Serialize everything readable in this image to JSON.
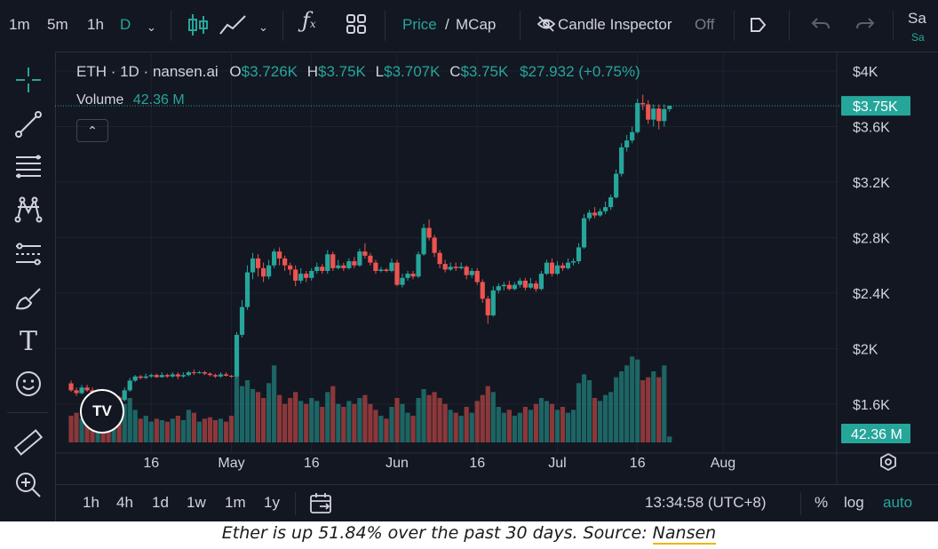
{
  "colors": {
    "bg": "#131722",
    "up": "#26a69a",
    "down": "#ef5350",
    "text": "#d1d4dc",
    "grid": "#1e222d",
    "price_tag": "#26a69a"
  },
  "toolbar": {
    "intervals": [
      "1m",
      "5m",
      "1h",
      "D"
    ],
    "active_interval": "D",
    "price_label": "Price",
    "mcap_label": "MCap",
    "slash": "/",
    "candle_inspector_label": "Candle Inspector",
    "candle_inspector_state": "Off",
    "save_label": "Sa",
    "save_sub_label": "Sa"
  },
  "legend": {
    "symbol": "ETH · 1D · nansen.ai",
    "o_label": "O",
    "o_value": "$3.726K",
    "h_label": "H",
    "h_value": "$3.75K",
    "l_label": "L",
    "l_value": "$3.707K",
    "c_label": "C",
    "c_value": "$3.75K",
    "change": "$27.932 (+0.75%)",
    "volume_label": "Volume",
    "volume_value": "42.36 M"
  },
  "price_tag": "$3.75K",
  "volume_tag": "42.36 M",
  "bottombar": {
    "ranges": [
      "1h",
      "4h",
      "1d",
      "1w",
      "1m",
      "1y"
    ],
    "time": "13:34:58 (UTC+8)",
    "percent_label": "%",
    "log_label": "log",
    "auto_label": "auto"
  },
  "caption": {
    "text": "Ether is up 51.84% over the past 30 days. Source: ",
    "link": "Nansen"
  },
  "icons": [
    "crosshair-icon",
    "trendline-icon",
    "fib-icon",
    "pattern-icon",
    "projection-icon",
    "brush-icon",
    "text-icon",
    "emoji-icon",
    "ruler-icon",
    "zoom-icon",
    "indicators-icon",
    "layouts-icon",
    "eye-off-icon",
    "tag-icon",
    "undo-icon",
    "redo-icon",
    "calendar-icon",
    "settings-icon"
  ],
  "chart_data": {
    "type": "candlestick",
    "title": "ETH · 1D · nansen.ai",
    "y_ticks": [
      "$4K",
      "$3.6K",
      "$3.2K",
      "$2.8K",
      "$2.4K",
      "$2K",
      "$1.6K"
    ],
    "y_tick_values": [
      4000,
      3600,
      3200,
      2800,
      2400,
      2000,
      1600
    ],
    "x_ticks": [
      "16",
      "May",
      "16",
      "Jun",
      "16",
      "Jul",
      "16",
      "Aug"
    ],
    "x_tick_days": [
      15,
      30,
      45,
      61,
      76,
      91,
      106,
      122
    ],
    "ylim": [
      1450,
      4100
    ],
    "xlim_days": [
      -1,
      132
    ],
    "current_price": 3750,
    "candles": [
      {
        "o": 1750,
        "c": 1700,
        "h": 1770,
        "l": 1690,
        "v": 18
      },
      {
        "o": 1700,
        "c": 1680,
        "h": 1720,
        "l": 1660,
        "v": 20
      },
      {
        "o": 1680,
        "c": 1720,
        "h": 1740,
        "l": 1670,
        "v": 16
      },
      {
        "o": 1720,
        "c": 1700,
        "h": 1740,
        "l": 1690,
        "v": 18
      },
      {
        "o": 1700,
        "c": 1680,
        "h": 1720,
        "l": 1670,
        "v": 14
      },
      {
        "o": 1680,
        "c": 1700,
        "h": 1710,
        "l": 1670,
        "v": 16
      },
      {
        "o": 1700,
        "c": 1660,
        "h": 1710,
        "l": 1650,
        "v": 15
      },
      {
        "o": 1660,
        "c": 1640,
        "h": 1680,
        "l": 1620,
        "v": 17
      },
      {
        "o": 1640,
        "c": 1650,
        "h": 1660,
        "l": 1630,
        "v": 14
      },
      {
        "o": 1650,
        "c": 1630,
        "h": 1660,
        "l": 1620,
        "v": 15
      },
      {
        "o": 1630,
        "c": 1700,
        "h": 1720,
        "l": 1620,
        "v": 26
      },
      {
        "o": 1700,
        "c": 1770,
        "h": 1790,
        "l": 1690,
        "v": 30
      },
      {
        "o": 1770,
        "c": 1800,
        "h": 1810,
        "l": 1760,
        "v": 22
      },
      {
        "o": 1800,
        "c": 1790,
        "h": 1810,
        "l": 1780,
        "v": 16
      },
      {
        "o": 1790,
        "c": 1800,
        "h": 1820,
        "l": 1780,
        "v": 18
      },
      {
        "o": 1800,
        "c": 1810,
        "h": 1820,
        "l": 1790,
        "v": 14
      },
      {
        "o": 1810,
        "c": 1795,
        "h": 1820,
        "l": 1790,
        "v": 16
      },
      {
        "o": 1795,
        "c": 1810,
        "h": 1830,
        "l": 1790,
        "v": 15
      },
      {
        "o": 1810,
        "c": 1800,
        "h": 1820,
        "l": 1790,
        "v": 14
      },
      {
        "o": 1800,
        "c": 1815,
        "h": 1830,
        "l": 1790,
        "v": 16
      },
      {
        "o": 1815,
        "c": 1800,
        "h": 1830,
        "l": 1780,
        "v": 18
      },
      {
        "o": 1800,
        "c": 1810,
        "h": 1830,
        "l": 1790,
        "v": 15
      },
      {
        "o": 1810,
        "c": 1830,
        "h": 1840,
        "l": 1800,
        "v": 22
      },
      {
        "o": 1830,
        "c": 1825,
        "h": 1850,
        "l": 1810,
        "v": 20
      },
      {
        "o": 1825,
        "c": 1830,
        "h": 1840,
        "l": 1820,
        "v": 14
      },
      {
        "o": 1830,
        "c": 1820,
        "h": 1840,
        "l": 1810,
        "v": 16
      },
      {
        "o": 1820,
        "c": 1810,
        "h": 1830,
        "l": 1800,
        "v": 17
      },
      {
        "o": 1810,
        "c": 1800,
        "h": 1820,
        "l": 1790,
        "v": 15
      },
      {
        "o": 1800,
        "c": 1815,
        "h": 1830,
        "l": 1790,
        "v": 16
      },
      {
        "o": 1815,
        "c": 1805,
        "h": 1830,
        "l": 1800,
        "v": 14
      },
      {
        "o": 1805,
        "c": 1800,
        "h": 1810,
        "l": 1790,
        "v": 18
      },
      {
        "o": 1800,
        "c": 2100,
        "h": 2120,
        "l": 1790,
        "v": 45
      },
      {
        "o": 2100,
        "c": 2300,
        "h": 2350,
        "l": 2080,
        "v": 38
      },
      {
        "o": 2300,
        "c": 2550,
        "h": 2600,
        "l": 2280,
        "v": 42
      },
      {
        "o": 2550,
        "c": 2650,
        "h": 2690,
        "l": 2500,
        "v": 36
      },
      {
        "o": 2650,
        "c": 2580,
        "h": 2680,
        "l": 2520,
        "v": 34
      },
      {
        "o": 2580,
        "c": 2520,
        "h": 2620,
        "l": 2480,
        "v": 30
      },
      {
        "o": 2520,
        "c": 2600,
        "h": 2640,
        "l": 2500,
        "v": 40
      },
      {
        "o": 2600,
        "c": 2700,
        "h": 2720,
        "l": 2580,
        "v": 52
      },
      {
        "o": 2700,
        "c": 2650,
        "h": 2730,
        "l": 2600,
        "v": 32
      },
      {
        "o": 2650,
        "c": 2600,
        "h": 2670,
        "l": 2560,
        "v": 26
      },
      {
        "o": 2600,
        "c": 2570,
        "h": 2620,
        "l": 2530,
        "v": 30
      },
      {
        "o": 2570,
        "c": 2490,
        "h": 2600,
        "l": 2450,
        "v": 34
      },
      {
        "o": 2490,
        "c": 2540,
        "h": 2580,
        "l": 2470,
        "v": 28
      },
      {
        "o": 2540,
        "c": 2510,
        "h": 2560,
        "l": 2480,
        "v": 26
      },
      {
        "o": 2510,
        "c": 2560,
        "h": 2580,
        "l": 2490,
        "v": 30
      },
      {
        "o": 2560,
        "c": 2590,
        "h": 2620,
        "l": 2540,
        "v": 28
      },
      {
        "o": 2590,
        "c": 2560,
        "h": 2610,
        "l": 2540,
        "v": 24
      },
      {
        "o": 2560,
        "c": 2680,
        "h": 2710,
        "l": 2540,
        "v": 34
      },
      {
        "o": 2680,
        "c": 2580,
        "h": 2700,
        "l": 2560,
        "v": 38
      },
      {
        "o": 2580,
        "c": 2600,
        "h": 2640,
        "l": 2570,
        "v": 26
      },
      {
        "o": 2600,
        "c": 2580,
        "h": 2620,
        "l": 2560,
        "v": 24
      },
      {
        "o": 2580,
        "c": 2630,
        "h": 2650,
        "l": 2570,
        "v": 28
      },
      {
        "o": 2630,
        "c": 2600,
        "h": 2660,
        "l": 2580,
        "v": 26
      },
      {
        "o": 2600,
        "c": 2700,
        "h": 2720,
        "l": 2590,
        "v": 30
      },
      {
        "o": 2700,
        "c": 2670,
        "h": 2760,
        "l": 2650,
        "v": 32
      },
      {
        "o": 2670,
        "c": 2620,
        "h": 2690,
        "l": 2600,
        "v": 26
      },
      {
        "o": 2620,
        "c": 2560,
        "h": 2640,
        "l": 2540,
        "v": 22
      },
      {
        "o": 2560,
        "c": 2570,
        "h": 2590,
        "l": 2550,
        "v": 18
      },
      {
        "o": 2570,
        "c": 2560,
        "h": 2580,
        "l": 2550,
        "v": 16
      },
      {
        "o": 2560,
        "c": 2620,
        "h": 2650,
        "l": 2550,
        "v": 24
      },
      {
        "o": 2620,
        "c": 2460,
        "h": 2640,
        "l": 2450,
        "v": 30
      },
      {
        "o": 2460,
        "c": 2510,
        "h": 2540,
        "l": 2440,
        "v": 26
      },
      {
        "o": 2510,
        "c": 2540,
        "h": 2560,
        "l": 2490,
        "v": 20
      },
      {
        "o": 2540,
        "c": 2520,
        "h": 2560,
        "l": 2500,
        "v": 18
      },
      {
        "o": 2520,
        "c": 2680,
        "h": 2700,
        "l": 2510,
        "v": 30
      },
      {
        "o": 2680,
        "c": 2870,
        "h": 2900,
        "l": 2670,
        "v": 36
      },
      {
        "o": 2870,
        "c": 2800,
        "h": 2930,
        "l": 2780,
        "v": 32
      },
      {
        "o": 2800,
        "c": 2690,
        "h": 2820,
        "l": 2660,
        "v": 34
      },
      {
        "o": 2690,
        "c": 2610,
        "h": 2710,
        "l": 2580,
        "v": 30
      },
      {
        "o": 2610,
        "c": 2570,
        "h": 2640,
        "l": 2550,
        "v": 26
      },
      {
        "o": 2570,
        "c": 2590,
        "h": 2620,
        "l": 2560,
        "v": 22
      },
      {
        "o": 2590,
        "c": 2580,
        "h": 2620,
        "l": 2560,
        "v": 20
      },
      {
        "o": 2580,
        "c": 2590,
        "h": 2620,
        "l": 2570,
        "v": 18
      },
      {
        "o": 2590,
        "c": 2530,
        "h": 2600,
        "l": 2500,
        "v": 24
      },
      {
        "o": 2530,
        "c": 2560,
        "h": 2580,
        "l": 2510,
        "v": 20
      },
      {
        "o": 2560,
        "c": 2480,
        "h": 2580,
        "l": 2460,
        "v": 28
      },
      {
        "o": 2480,
        "c": 2360,
        "h": 2500,
        "l": 2330,
        "v": 32
      },
      {
        "o": 2360,
        "c": 2240,
        "h": 2380,
        "l": 2180,
        "v": 38
      },
      {
        "o": 2240,
        "c": 2420,
        "h": 2450,
        "l": 2230,
        "v": 34
      },
      {
        "o": 2420,
        "c": 2450,
        "h": 2470,
        "l": 2400,
        "v": 24
      },
      {
        "o": 2450,
        "c": 2460,
        "h": 2480,
        "l": 2420,
        "v": 20
      },
      {
        "o": 2460,
        "c": 2430,
        "h": 2490,
        "l": 2420,
        "v": 22
      },
      {
        "o": 2430,
        "c": 2460,
        "h": 2480,
        "l": 2420,
        "v": 18
      },
      {
        "o": 2460,
        "c": 2490,
        "h": 2510,
        "l": 2440,
        "v": 20
      },
      {
        "o": 2490,
        "c": 2440,
        "h": 2510,
        "l": 2420,
        "v": 24
      },
      {
        "o": 2440,
        "c": 2470,
        "h": 2510,
        "l": 2430,
        "v": 22
      },
      {
        "o": 2470,
        "c": 2430,
        "h": 2490,
        "l": 2410,
        "v": 26
      },
      {
        "o": 2430,
        "c": 2540,
        "h": 2560,
        "l": 2420,
        "v": 30
      },
      {
        "o": 2540,
        "c": 2620,
        "h": 2640,
        "l": 2530,
        "v": 28
      },
      {
        "o": 2620,
        "c": 2540,
        "h": 2650,
        "l": 2520,
        "v": 26
      },
      {
        "o": 2540,
        "c": 2600,
        "h": 2630,
        "l": 2530,
        "v": 22
      },
      {
        "o": 2600,
        "c": 2580,
        "h": 2620,
        "l": 2560,
        "v": 24
      },
      {
        "o": 2580,
        "c": 2620,
        "h": 2650,
        "l": 2570,
        "v": 20
      },
      {
        "o": 2620,
        "c": 2630,
        "h": 2650,
        "l": 2600,
        "v": 22
      },
      {
        "o": 2630,
        "c": 2730,
        "h": 2760,
        "l": 2610,
        "v": 40
      },
      {
        "o": 2730,
        "c": 2940,
        "h": 2970,
        "l": 2720,
        "v": 46
      },
      {
        "o": 2940,
        "c": 2980,
        "h": 3000,
        "l": 2920,
        "v": 42
      },
      {
        "o": 2980,
        "c": 2960,
        "h": 3020,
        "l": 2940,
        "v": 30
      },
      {
        "o": 2960,
        "c": 2990,
        "h": 3010,
        "l": 2950,
        "v": 28
      },
      {
        "o": 2990,
        "c": 3020,
        "h": 3060,
        "l": 2970,
        "v": 32
      },
      {
        "o": 3020,
        "c": 3090,
        "h": 3110,
        "l": 3000,
        "v": 34
      },
      {
        "o": 3090,
        "c": 3260,
        "h": 3290,
        "l": 3080,
        "v": 44
      },
      {
        "o": 3260,
        "c": 3450,
        "h": 3480,
        "l": 3240,
        "v": 48
      },
      {
        "o": 3450,
        "c": 3500,
        "h": 3540,
        "l": 3420,
        "v": 52
      },
      {
        "o": 3500,
        "c": 3560,
        "h": 3600,
        "l": 3480,
        "v": 58
      },
      {
        "o": 3560,
        "c": 3770,
        "h": 3800,
        "l": 3550,
        "v": 56
      },
      {
        "o": 3770,
        "c": 3760,
        "h": 3830,
        "l": 3720,
        "v": 42
      },
      {
        "o": 3760,
        "c": 3650,
        "h": 3790,
        "l": 3620,
        "v": 44
      },
      {
        "o": 3650,
        "c": 3730,
        "h": 3760,
        "l": 3600,
        "v": 48
      },
      {
        "o": 3730,
        "c": 3640,
        "h": 3760,
        "l": 3580,
        "v": 44
      },
      {
        "o": 3640,
        "c": 3726,
        "h": 3760,
        "l": 3600,
        "v": 52
      },
      {
        "o": 3726,
        "c": 3750,
        "h": 3750,
        "l": 3707,
        "v": 4
      }
    ],
    "volume_max": 60
  }
}
